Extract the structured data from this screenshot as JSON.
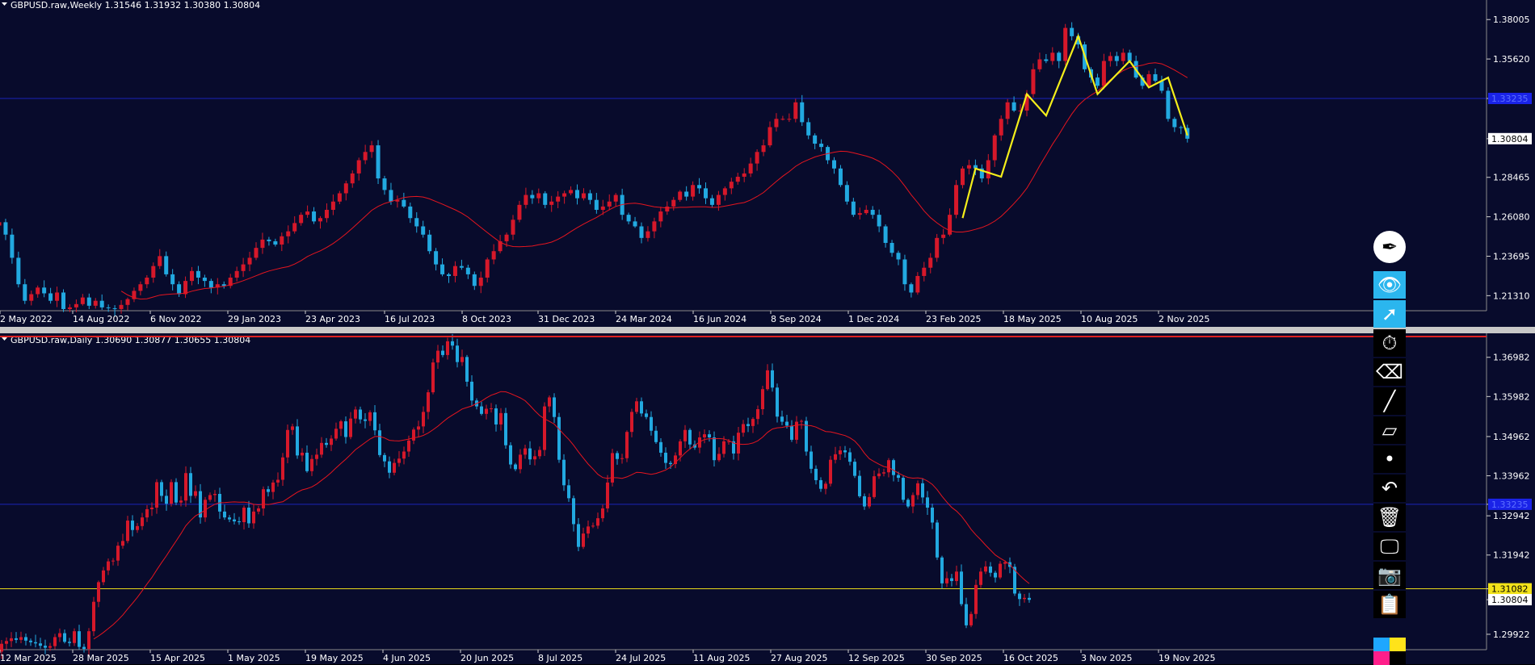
{
  "colors": {
    "background": "#080b2c",
    "bull": "#d6182a",
    "bear": "#22a9e0",
    "ma": "#e5151f",
    "zigzag": "#f4ee1a",
    "hline_blue": "#1a23b8",
    "hline_yellow": "#e6d91a",
    "axis_text": "#ffffff",
    "toolbar_active": "#2bb6ee"
  },
  "toolbar": {
    "items": [
      {
        "name": "pen-logo-icon",
        "glyph": "✒"
      },
      {
        "name": "eye-icon",
        "glyph": "👁"
      },
      {
        "name": "cursor-icon",
        "glyph": "➚"
      },
      {
        "name": "stopwatch-icon",
        "glyph": "⏱"
      },
      {
        "name": "eraser-tag-icon",
        "glyph": "⌫"
      },
      {
        "name": "line-tool-icon",
        "glyph": "╱"
      },
      {
        "name": "eraser-icon",
        "glyph": "▱"
      },
      {
        "name": "dot-icon",
        "glyph": "•"
      },
      {
        "name": "undo-icon",
        "glyph": "↶"
      },
      {
        "name": "trash-icon",
        "glyph": "🗑"
      },
      {
        "name": "monitor-icon",
        "glyph": "🖵"
      },
      {
        "name": "camera-icon",
        "glyph": "📷"
      },
      {
        "name": "clipboard-icon",
        "glyph": "📋"
      }
    ],
    "palette": [
      "#1ea7ff",
      "#ffe31a",
      "#ff1e8a",
      "#000000"
    ]
  },
  "chart_data": [
    {
      "type": "candlestick",
      "title": "GBPUSD.raw,Weekly  1.31546 1.31932 1.30380 1.30804",
      "symbol": "GBPUSD.raw",
      "timeframe": "Weekly",
      "ohlc_header": "1.31546 1.31932 1.30380 1.30804",
      "x_tick_labels": [
        "2 May 2022",
        "14 Aug 2022",
        "6 Nov 2022",
        "29 Jan 2023",
        "23 Apr 2023",
        "16 Jul 2023",
        "8 Oct 2023",
        "31 Dec 2023",
        "24 Mar 2024",
        "16 Jun 2024",
        "8 Sep 2024",
        "1 Dec 2024",
        "23 Feb 2025",
        "18 May 2025",
        "10 Aug 2025",
        "2 Nov 2025"
      ],
      "y_tick_labels": [
        "1.38005",
        "1.35620",
        "1.33235",
        "1.30804",
        "1.28465",
        "1.26080",
        "1.23695",
        "1.21310"
      ],
      "ylim": [
        1.204,
        1.387
      ],
      "current_price": "1.30804",
      "horizontal_line_label": "1.33235",
      "closes": [
        1.2575,
        1.25,
        1.236,
        1.22,
        1.21,
        1.214,
        1.218,
        1.2145,
        1.21,
        1.215,
        1.205,
        1.206,
        1.208,
        1.212,
        1.207,
        1.21,
        1.206,
        1.2055,
        1.205,
        1.2075,
        1.211,
        1.216,
        1.22,
        1.224,
        1.231,
        1.237,
        1.226,
        1.22,
        1.214,
        1.222,
        1.228,
        1.224,
        1.222,
        1.218,
        1.22,
        1.219,
        1.224,
        1.228,
        1.232,
        1.236,
        1.242,
        1.247,
        1.246,
        1.244,
        1.249,
        1.252,
        1.257,
        1.262,
        1.264,
        1.258,
        1.26,
        1.265,
        1.27,
        1.275,
        1.281,
        1.287,
        1.295,
        1.3,
        1.304,
        1.284,
        1.277,
        1.27,
        1.271,
        1.267,
        1.26,
        1.255,
        1.25,
        1.24,
        1.232,
        1.226,
        1.225,
        1.231,
        1.23,
        1.226,
        1.219,
        1.224,
        1.235,
        1.24,
        1.246,
        1.25,
        1.259,
        1.268,
        1.274,
        1.272,
        1.275,
        1.268,
        1.27,
        1.273,
        1.275,
        1.277,
        1.272,
        1.275,
        1.271,
        1.265,
        1.267,
        1.27,
        1.274,
        1.262,
        1.258,
        1.255,
        1.248,
        1.252,
        1.258,
        1.264,
        1.267,
        1.271,
        1.276,
        1.273,
        1.28,
        1.278,
        1.272,
        1.268,
        1.274,
        1.278,
        1.282,
        1.285,
        1.287,
        1.293,
        1.3,
        1.304,
        1.315,
        1.32,
        1.32,
        1.32,
        1.33,
        1.318,
        1.31,
        1.305,
        1.303,
        1.295,
        1.29,
        1.28,
        1.27,
        1.262,
        1.263,
        1.265,
        1.262,
        1.255,
        1.245,
        1.239,
        1.235,
        1.22,
        1.215,
        1.225,
        1.23,
        1.236,
        1.248,
        1.25,
        1.262,
        1.28,
        1.29,
        1.292,
        1.29,
        1.284,
        1.295,
        1.31,
        1.32,
        1.33,
        1.325,
        1.325,
        1.335,
        1.35,
        1.356,
        1.355,
        1.36,
        1.355,
        1.375,
        1.37,
        1.365,
        1.35,
        1.345,
        1.34,
        1.355,
        1.358,
        1.355,
        1.36,
        1.355,
        1.345,
        1.34,
        1.347,
        1.343,
        1.337,
        1.32,
        1.315,
        1.3145,
        1.308
      ],
      "ma_period": 20,
      "zigzag": [
        [
          150,
          1.26
        ],
        [
          152,
          1.29
        ],
        [
          156,
          1.285
        ],
        [
          160,
          1.335
        ],
        [
          163,
          1.322
        ],
        [
          168,
          1.37
        ],
        [
          171,
          1.335
        ],
        [
          176,
          1.355
        ],
        [
          179,
          1.339
        ],
        [
          182,
          1.345
        ],
        [
          185,
          1.31
        ]
      ]
    },
    {
      "type": "candlestick",
      "title": "GBPUSD.raw,Daily  1.30690 1.30877 1.30655 1.30804",
      "symbol": "GBPUSD.raw",
      "timeframe": "Daily",
      "ohlc_header": "1.30690 1.30877 1.30655 1.30804",
      "x_tick_labels": [
        "12 Mar 2025",
        "28 Mar 2025",
        "15 Apr 2025",
        "1 May 2025",
        "19 May 2025",
        "4 Jun 2025",
        "20 Jun 2025",
        "8 Jul 2025",
        "24 Jul 2025",
        "11 Aug 2025",
        "27 Aug 2025",
        "12 Sep 2025",
        "30 Sep 2025",
        "16 Oct 2025",
        "3 Nov 2025",
        "19 Nov 2025"
      ],
      "y_tick_labels": [
        "1.36982",
        "1.35982",
        "1.34962",
        "1.33962",
        "1.33235",
        "1.32942",
        "1.31942",
        "1.31082",
        "1.30804",
        "1.29922"
      ],
      "ylim": [
        1.2953,
        1.3747
      ],
      "current_price": "1.30804",
      "horizontal_line_label": "1.33235",
      "yellow_line_label": "1.31082",
      "closes": [
        1.2968,
        1.2975,
        1.2982,
        1.2978,
        1.2985,
        1.2976,
        1.2972,
        1.2969,
        1.2963,
        1.2958,
        1.2962,
        1.2985,
        1.2995,
        1.2973,
        1.297,
        1.3,
        1.296,
        1.2955,
        1.3,
        1.3075,
        1.3125,
        1.3155,
        1.3178,
        1.318,
        1.3218,
        1.323,
        1.3282,
        1.3258,
        1.3268,
        1.329,
        1.3311,
        1.3315,
        1.338,
        1.3345,
        1.3325,
        1.338,
        1.3328,
        1.3333,
        1.3403,
        1.3345,
        1.3357,
        1.329,
        1.3335,
        1.3347,
        1.335,
        1.3305,
        1.329,
        1.3285,
        1.328,
        1.3278,
        1.3315,
        1.3275,
        1.3305,
        1.3313,
        1.3362,
        1.3355,
        1.3379,
        1.3386,
        1.3443,
        1.3513,
        1.3522,
        1.3448,
        1.3455,
        1.3408,
        1.3439,
        1.345,
        1.348,
        1.3475,
        1.3491,
        1.3516,
        1.3535,
        1.3495,
        1.3542,
        1.3565,
        1.354,
        1.3536,
        1.3558,
        1.3512,
        1.3449,
        1.3433,
        1.3404,
        1.3429,
        1.344,
        1.3458,
        1.3486,
        1.3514,
        1.3522,
        1.3559,
        1.3609,
        1.3685,
        1.3715,
        1.3704,
        1.3739,
        1.3728,
        1.3686,
        1.3699,
        1.3636,
        1.3588,
        1.3573,
        1.3554,
        1.3567,
        1.3568,
        1.3527,
        1.3556,
        1.3474,
        1.3425,
        1.3413,
        1.345,
        1.3466,
        1.3438,
        1.3446,
        1.3462,
        1.3573,
        1.3596,
        1.3546,
        1.3437,
        1.3372,
        1.3339,
        1.3273,
        1.3215,
        1.3249,
        1.3267,
        1.3269,
        1.3288,
        1.3313,
        1.3379,
        1.3454,
        1.3439,
        1.3441,
        1.3508,
        1.3559,
        1.3586,
        1.3555,
        1.3546,
        1.3511,
        1.3482,
        1.3455,
        1.3429,
        1.3426,
        1.3448,
        1.3484,
        1.3513,
        1.3476,
        1.3468,
        1.3494,
        1.3502,
        1.3494,
        1.3436,
        1.3452,
        1.3484,
        1.3484,
        1.3453,
        1.3506,
        1.3528,
        1.3523,
        1.3541,
        1.3566,
        1.3617,
        1.3665,
        1.3621,
        1.3547,
        1.3534,
        1.3524,
        1.3488,
        1.3534,
        1.3536,
        1.3458,
        1.3414,
        1.3385,
        1.3363,
        1.3376,
        1.3437,
        1.3451,
        1.3461,
        1.3456,
        1.3432,
        1.3396,
        1.3344,
        1.3318,
        1.3342,
        1.3395,
        1.3402,
        1.3405,
        1.3436,
        1.3398,
        1.3391,
        1.3335,
        1.3318,
        1.3347,
        1.3377,
        1.3341,
        1.3315,
        1.3277,
        1.3188,
        1.3122,
        1.3135,
        1.3128,
        1.3152,
        1.3069,
        1.3015,
        1.3044,
        1.3118,
        1.3152,
        1.3165,
        1.3149,
        1.3137,
        1.3172,
        1.3176,
        1.3164,
        1.3096,
        1.3082,
        1.3085,
        1.308
      ]
    }
  ]
}
